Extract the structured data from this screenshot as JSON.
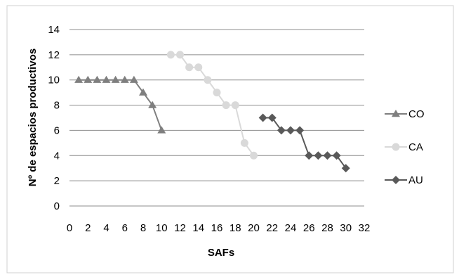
{
  "chart_data": {
    "type": "line",
    "title": "",
    "xlabel": "SAFs",
    "ylabel": "Nº de espacios productivos",
    "xlim": [
      0,
      32
    ],
    "ylim": [
      0,
      14
    ],
    "xticks": [
      0,
      2,
      4,
      6,
      8,
      10,
      12,
      14,
      16,
      18,
      20,
      22,
      24,
      26,
      28,
      30,
      32
    ],
    "yticks": [
      0,
      2,
      4,
      6,
      8,
      10,
      12,
      14
    ],
    "grid": "horizontal",
    "legend_position": "right",
    "series": [
      {
        "name": "CO",
        "color": "#7f7f7f",
        "marker": "triangle",
        "x": [
          1,
          2,
          3,
          4,
          5,
          6,
          7,
          8,
          9,
          10
        ],
        "y": [
          10,
          10,
          10,
          10,
          10,
          10,
          10,
          9,
          8,
          6
        ]
      },
      {
        "name": "CA",
        "color": "#d9d9d9",
        "marker": "circle",
        "x": [
          11,
          12,
          13,
          14,
          15,
          16,
          17,
          18,
          19,
          20
        ],
        "y": [
          12,
          12,
          11,
          11,
          10,
          9,
          8,
          8,
          5,
          4
        ]
      },
      {
        "name": "AU",
        "color": "#595959",
        "marker": "diamond",
        "x": [
          21,
          22,
          23,
          24,
          25,
          26,
          27,
          28,
          29,
          30
        ],
        "y": [
          7,
          7,
          6,
          6,
          6,
          4,
          4,
          4,
          4,
          3
        ]
      }
    ]
  }
}
